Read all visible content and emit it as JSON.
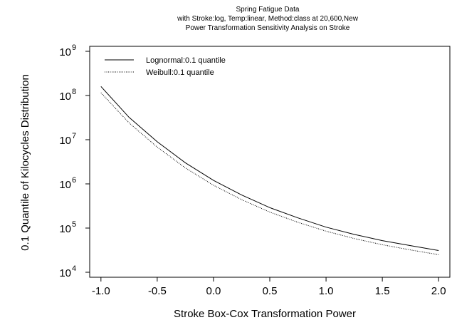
{
  "chart_data": {
    "type": "line",
    "title": [
      "Spring Fatigue Data",
      "with  Stroke:log, Temp:linear, Method:class at 20,600,New",
      "Power Transformation Sensitivity Analysis on Stroke"
    ],
    "xlabel": "Stroke Box-Cox Transformation Power",
    "ylabel": "0.1 Quantile of Kilocycles Distribution",
    "xlim": [
      -1.1,
      2.1
    ],
    "ylim": [
      10000,
      1000000000
    ],
    "y_scale": "log",
    "x_ticks": [
      "-1.0",
      "-0.5",
      "0.0",
      "0.5",
      "1.0",
      "1.5",
      "2.0"
    ],
    "y_tick_base": "10",
    "y_tick_exponents": [
      "4",
      "5",
      "6",
      "7",
      "8",
      "9"
    ],
    "legend_position": "top-left",
    "x": [
      -1.0,
      -0.75,
      -0.5,
      -0.25,
      0.0,
      0.25,
      0.5,
      0.75,
      1.0,
      1.25,
      1.5,
      1.75,
      2.0
    ],
    "series": [
      {
        "name": "Lognormal:0.1 quantile",
        "line_style": "solid",
        "values": [
          160000000,
          32000000,
          9000000,
          3000000,
          1200000,
          560000,
          290000,
          170000,
          105000,
          72000,
          52000,
          40000,
          31000
        ]
      },
      {
        "name": "Weibull:0.1 quantile",
        "line_style": "dotted",
        "values": [
          115000000,
          24000000,
          6800000,
          2300000,
          930000,
          440000,
          230000,
          135000,
          85000,
          58000,
          42000,
          32000,
          25000
        ]
      }
    ]
  }
}
